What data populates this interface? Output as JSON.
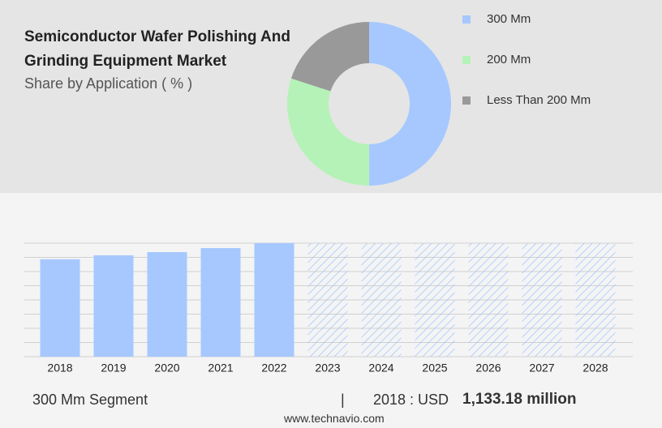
{
  "chart_data": [
    {
      "type": "donut",
      "title": "Semiconductor Wafer Polishing And Grinding Equipment Market",
      "subtitle": "Share by Application ( % )",
      "categories": [
        "300 Mm",
        "200 Mm",
        "Less Than 200 Mm"
      ],
      "values": [
        50,
        30,
        20
      ],
      "colors": [
        "#a6c8ff",
        "#b5f2b8",
        "#999999"
      ]
    },
    {
      "type": "bar",
      "categories": [
        "2018",
        "2019",
        "2020",
        "2021",
        "2022",
        "2023",
        "2024",
        "2025",
        "2026",
        "2027",
        "2028"
      ],
      "values": [
        1133.18,
        1179,
        1216,
        1263,
        1320,
        null,
        null,
        null,
        null,
        null,
        null
      ],
      "color": "#a6c8ff",
      "ylim": [
        0,
        1320
      ],
      "yticks": [
        0,
        165,
        330,
        495,
        660,
        825,
        990,
        1155,
        1320
      ],
      "grid": true
    }
  ],
  "footer": {
    "segment": "300 Mm Segment",
    "separator": "|",
    "year_label": "2018 : USD",
    "value_label": "1,133.18 million",
    "source": "www.technavio.com"
  }
}
